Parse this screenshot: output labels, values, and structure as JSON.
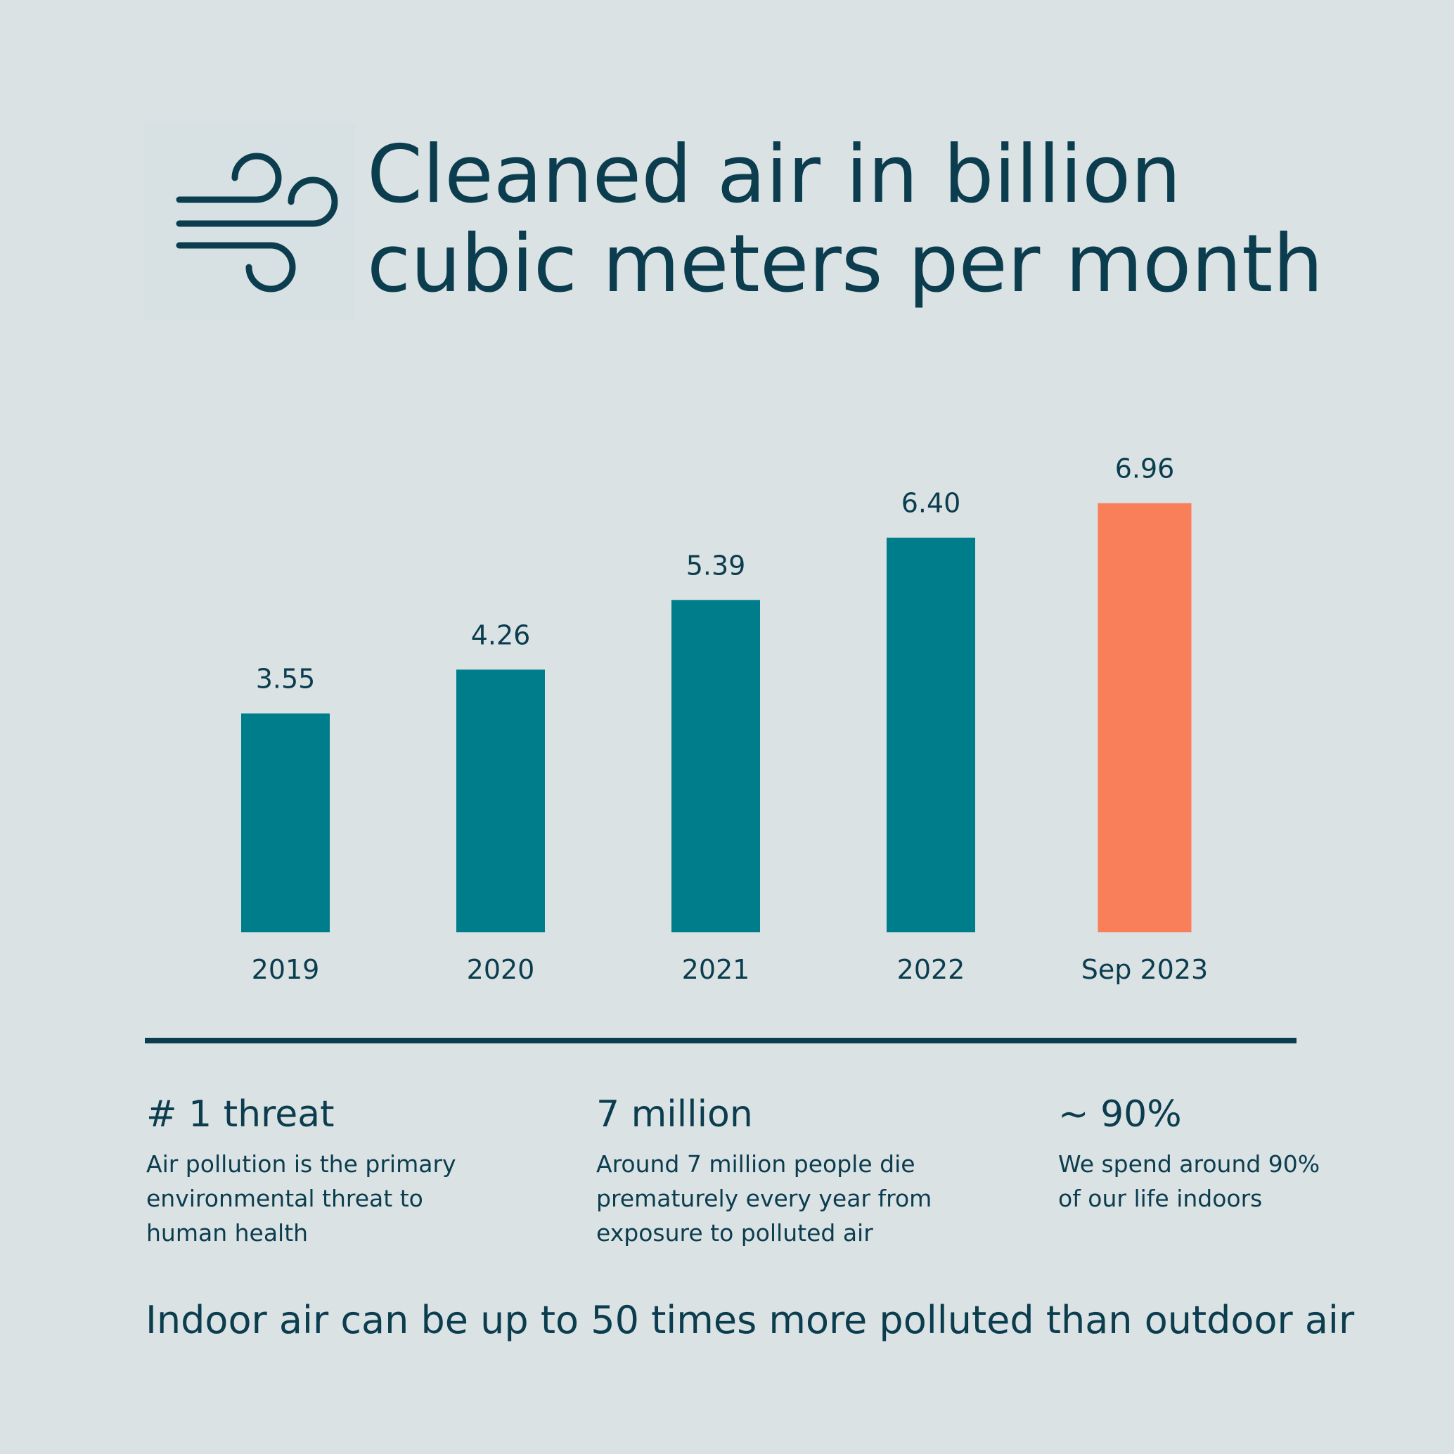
{
  "header": {
    "icon": "wind-icon",
    "title_line1": "Cleaned air in billion",
    "title_line2": "cubic meters per month"
  },
  "colors": {
    "background": "#dae2e4",
    "text": "#0b3d4f",
    "bar": "#007d8a",
    "highlight_bar": "#f87f5a"
  },
  "chart_data": {
    "type": "bar",
    "title": "Cleaned air in billion cubic meters per month",
    "categories": [
      "2019",
      "2020",
      "2021",
      "2022",
      "Sep 2023"
    ],
    "values": [
      3.55,
      4.26,
      5.39,
      6.4,
      6.96
    ],
    "value_labels": [
      "3.55",
      "4.26",
      "5.39",
      "6.40",
      "6.96"
    ],
    "highlight_index": 4,
    "xlabel": "",
    "ylabel": "",
    "ylim": [
      0,
      7
    ],
    "grid": false,
    "legend": "none"
  },
  "stats": [
    {
      "heading": "# 1 threat",
      "lines": [
        "Air pollution is the primary",
        "environmental threat to",
        "human health"
      ]
    },
    {
      "heading": "7 million",
      "lines": [
        "Around 7 million people die",
        "prematurely every year from",
        "exposure to polluted air"
      ]
    },
    {
      "heading": "~ 90%",
      "lines": [
        "We spend around 90%",
        "of our life indoors"
      ]
    }
  ],
  "footer": {
    "text": "Indoor air can be up to 50 times more polluted than outdoor air"
  }
}
